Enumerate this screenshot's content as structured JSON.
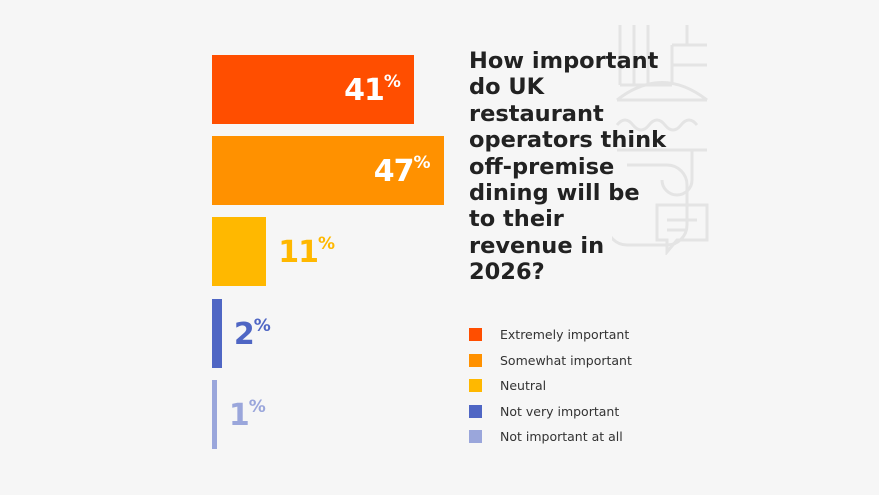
{
  "chart_data": {
    "type": "bar",
    "orientation": "horizontal",
    "title": "How important do UK restaurant operators think off-premise dining will be to their revenue in 2026?",
    "categories": [
      "Extremely important",
      "Somewhat important",
      "Neutral",
      "Not very important",
      "Not important at all"
    ],
    "values": [
      41,
      47,
      11,
      2,
      1
    ],
    "value_suffix": "%",
    "colors": [
      "#ff4e00",
      "#ff9100",
      "#ffb800",
      "#4f66c4",
      "#9aa6db"
    ],
    "label_colors": [
      "#ffffff",
      "#ffffff",
      "#ffb800",
      "#4f66c4",
      "#9aa6db"
    ],
    "legend_position": "right",
    "grid": false,
    "axes_visible": false
  }
}
